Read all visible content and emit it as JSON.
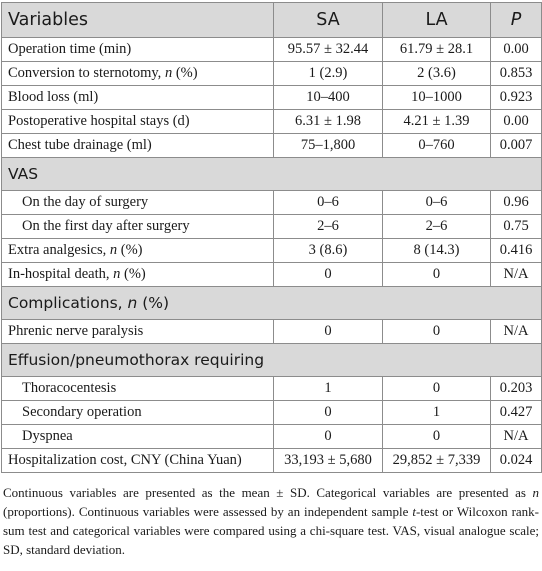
{
  "header": {
    "col1": "Variables",
    "col2": "SA",
    "col3": "LA",
    "col4": "P"
  },
  "rows": [
    {
      "type": "row",
      "label": "Operation time (min)",
      "sa": "95.57 ± 32.44",
      "la": "61.79 ± 28.1",
      "p": "0.00"
    },
    {
      "type": "row",
      "label": "Conversion to sternotomy, ",
      "label_em": "n",
      "label_tail": " (%)",
      "sa": "1 (2.9)",
      "la": "2 (3.6)",
      "p": "0.853"
    },
    {
      "type": "row",
      "label": "Blood loss (ml)",
      "sa": "10–400",
      "la": "10–1000",
      "p": "0.923"
    },
    {
      "type": "row",
      "label": "Postoperative hospital stays (d)",
      "sa": "6.31 ± 1.98",
      "la": "4.21 ± 1.39",
      "p": "0.00"
    },
    {
      "type": "row",
      "label": "Chest tube drainage (ml)",
      "sa": "75–1,800",
      "la": "0–760",
      "p": "0.007"
    },
    {
      "type": "section",
      "label": "VAS"
    },
    {
      "type": "row",
      "indent": true,
      "label": "On the day of surgery",
      "sa": "0–6",
      "la": "0–6",
      "p": "0.96"
    },
    {
      "type": "row",
      "indent": true,
      "label": "On the first day after surgery",
      "sa": "2–6",
      "la": "2–6",
      "p": "0.75"
    },
    {
      "type": "row",
      "label": "Extra analgesics, ",
      "label_em": "n",
      "label_tail": " (%)",
      "sa": "3 (8.6)",
      "la": "8 (14.3)",
      "p": "0.416"
    },
    {
      "type": "row",
      "label": "In-hospital death, ",
      "label_em": "n",
      "label_tail": " (%)",
      "sa": "0",
      "la": "0",
      "p": "N/A"
    },
    {
      "type": "section",
      "label": "Complications, ",
      "label_em": "n",
      "label_tail": " (%)"
    },
    {
      "type": "row",
      "label": "Phrenic nerve paralysis",
      "sa": "0",
      "la": "0",
      "p": "N/A"
    },
    {
      "type": "section",
      "label": "Effusion/pneumothorax requiring"
    },
    {
      "type": "row",
      "indent": true,
      "label": "Thoracocentesis",
      "sa": "1",
      "la": "0",
      "p": "0.203"
    },
    {
      "type": "row",
      "indent": true,
      "label": "Secondary operation",
      "sa": "0",
      "la": "1",
      "p": "0.427"
    },
    {
      "type": "row",
      "indent": true,
      "label": "Dyspnea",
      "sa": "0",
      "la": "0",
      "p": "N/A"
    },
    {
      "type": "row",
      "label": "Hospitalization cost, CNY (China Yuan)",
      "sa": "33,193 ± 5,680",
      "la": "29,852 ± 7,339",
      "p": "0.024"
    }
  ],
  "footnote": {
    "part1": "Continuous variables are presented as the mean ± SD. Categorical variables are presented as ",
    "em1": "n",
    "part2": " (proportions). Continuous variables were assessed by an independent sample ",
    "em2": "t",
    "part3": "-test or Wilcoxon rank-sum test and categorical variables were compared using a chi-square test. VAS, visual analogue scale; SD, standard deviation."
  }
}
